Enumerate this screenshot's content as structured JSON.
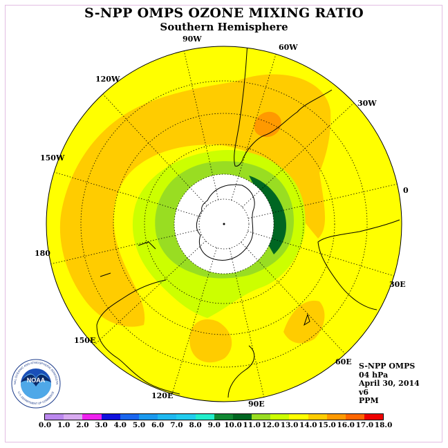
{
  "title": "S-NPP OMPS OZONE MIXING RATIO",
  "subtitle": "Southern Hemisphere",
  "longitude_labels": [
    "90W",
    "60W",
    "30W",
    "0",
    "30E",
    "60E",
    "90E",
    "120E",
    "150E",
    "180",
    "150W",
    "120W"
  ],
  "info": {
    "instrument": "S-NPP OMPS",
    "level": "04 hPa",
    "date": "April 30, 2014",
    "version": "v6",
    "units": "PPM"
  },
  "logo": {
    "text": "NOAA",
    "ring_text": "NATIONAL OCEANIC AND ATMOSPHERIC ADMINISTRATION",
    "bottom_text": "U.S. DEPARTMENT OF COMMERCE"
  },
  "colorbar": {
    "labels": [
      "0.0",
      "1.0",
      "2.0",
      "3.0",
      "4.0",
      "5.0",
      "6.0",
      "7.0",
      "8.0",
      "9.0",
      "10.0",
      "11.0",
      "12.0",
      "13.0",
      "14.0",
      "15.0",
      "16.0",
      "17.0",
      "18.0"
    ],
    "colors": [
      "#bb88ee",
      "#d8aaf0",
      "#ee22ee",
      "#1111dd",
      "#1a66ee",
      "#1a99ee",
      "#1fb8f0",
      "#22ccee",
      "#22eecc",
      "#118833",
      "#006622",
      "#99dd22",
      "#ccff00",
      "#ffff00",
      "#ffcc00",
      "#ff9900",
      "#ff6600",
      "#ee0000",
      "#996644"
    ]
  },
  "colors": {
    "background_field": "#ffff00",
    "orange_band": "#ffcc00",
    "dark_orange": "#ff9900",
    "light_green": "#ccff00",
    "green": "#99dd22",
    "dark_green": "#006622",
    "polar_mask": "#ffffff"
  }
}
